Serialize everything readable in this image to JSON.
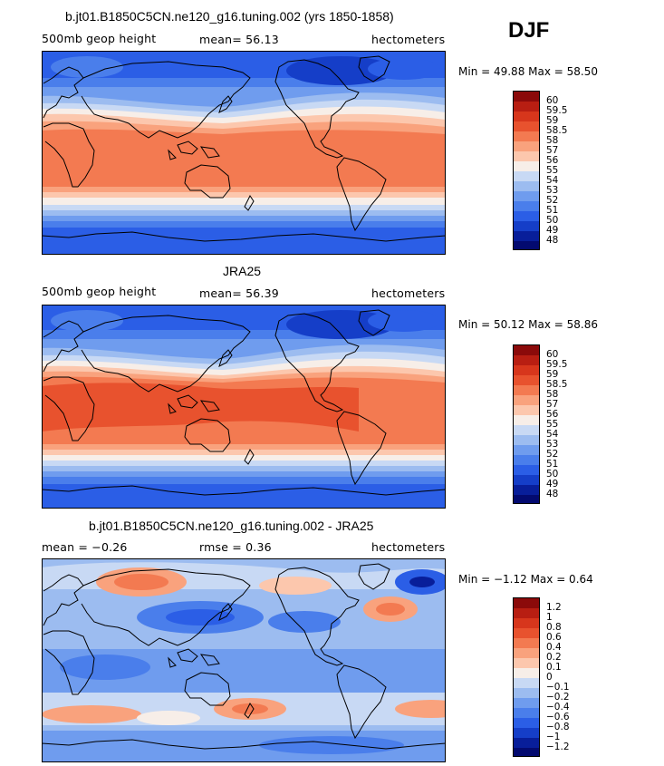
{
  "season": "DJF",
  "panels": [
    {
      "title": "b.jt01.B1850C5CN.ne120_g16.tuning.002 (yrs 1850-1858)",
      "left_label": "500mb geop height",
      "center_label": "mean=  56.13",
      "units": "hectometers",
      "minmax": "Min =   49.88  Max =   58.50",
      "colorbar_labels": [
        "60",
        "59.5",
        "59",
        "58.5",
        "58",
        "57",
        "56",
        "55",
        "54",
        "53",
        "52",
        "51",
        "50",
        "49",
        "48"
      ]
    },
    {
      "title": "JRA25",
      "left_label": "500mb geop height",
      "center_label": "mean=  56.39",
      "units": "hectometers",
      "minmax": "Min =   50.12  Max =   58.86",
      "colorbar_labels": [
        "60",
        "59.5",
        "59",
        "58.5",
        "58",
        "57",
        "56",
        "55",
        "54",
        "53",
        "52",
        "51",
        "50",
        "49",
        "48"
      ]
    },
    {
      "title": "b.jt01.B1850C5CN.ne120_g16.tuning.002 - JRA25",
      "left_label": "mean =   −0.26",
      "center_label": "rmse =    0.36",
      "units": "hectometers",
      "minmax": "Min =   −1.12  Max =    0.64",
      "colorbar_labels": [
        "1.2",
        "1",
        "0.8",
        "0.6",
        "0.4",
        "0.2",
        "0.1",
        "0",
        "−0.1",
        "−0.2",
        "−0.4",
        "−0.6",
        "−0.8",
        "−1",
        "−1.2"
      ]
    }
  ],
  "colors": {
    "palette": [
      "#8b0a0a",
      "#b81e12",
      "#d7361c",
      "#e8522e",
      "#f37a51",
      "#f9a27d",
      "#fcc7ad",
      "#f7eee8",
      "#c8d9f4",
      "#9cbcf0",
      "#6f9cee",
      "#4a7eeb",
      "#2b5ee6",
      "#153ec8",
      "#081e9a",
      "#030a70"
    ]
  }
}
